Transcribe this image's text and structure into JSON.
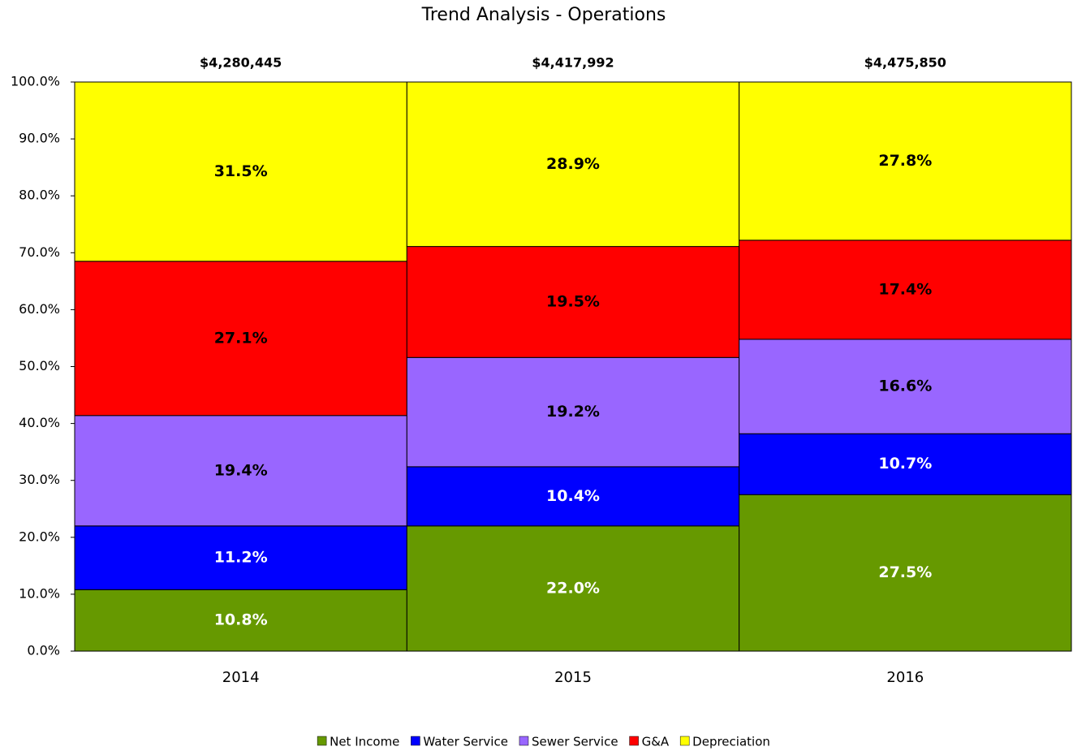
{
  "chart_data": {
    "type": "stacked_bar_percent",
    "title": "Trend Analysis - Operations",
    "categories": [
      "2014",
      "2015",
      "2016"
    ],
    "totals": {
      "values": [
        4280445,
        4417992,
        4475850
      ],
      "value_labels": [
        "$4,280,445",
        "$4,417,992",
        "$4,475,850"
      ]
    },
    "series": [
      {
        "name": "Net Income",
        "color": "#669900",
        "label_color": "#ffffff",
        "values": [
          10.8,
          22.0,
          27.5
        ],
        "value_labels": [
          "10.8%",
          "22.0%",
          "27.5%"
        ]
      },
      {
        "name": "Water Service",
        "color": "#0000ff",
        "label_color": "#ffffff",
        "values": [
          11.2,
          10.4,
          10.7
        ],
        "value_labels": [
          "11.2%",
          "10.4%",
          "10.7%"
        ]
      },
      {
        "name": "Sewer Service",
        "color": "#9966ff",
        "label_color": "#000000",
        "values": [
          19.4,
          19.2,
          16.6
        ],
        "value_labels": [
          "19.4%",
          "19.2%",
          "16.6%"
        ]
      },
      {
        "name": "G&A",
        "color": "#ff0000",
        "label_color": "#000000",
        "values": [
          27.1,
          19.5,
          17.4
        ],
        "value_labels": [
          "27.1%",
          "19.5%",
          "17.4%"
        ]
      },
      {
        "name": "Depreciation",
        "color": "#ffff00",
        "label_color": "#000000",
        "values": [
          31.5,
          28.9,
          27.8
        ],
        "value_labels": [
          "31.5%",
          "28.9%",
          "27.8%"
        ]
      }
    ],
    "ylim": [
      0,
      100
    ],
    "yticks": [
      {
        "value": 0,
        "label": "0.0%"
      },
      {
        "value": 10,
        "label": "10.0%"
      },
      {
        "value": 20,
        "label": "20.0%"
      },
      {
        "value": 30,
        "label": "30.0%"
      },
      {
        "value": 40,
        "label": "40.0%"
      },
      {
        "value": 50,
        "label": "50.0%"
      },
      {
        "value": 60,
        "label": "60.0%"
      },
      {
        "value": 70,
        "label": "70.0%"
      },
      {
        "value": 80,
        "label": "80.0%"
      },
      {
        "value": 90,
        "label": "90.0%"
      },
      {
        "value": 100,
        "label": "100.0%"
      }
    ],
    "legend": "bottom"
  }
}
